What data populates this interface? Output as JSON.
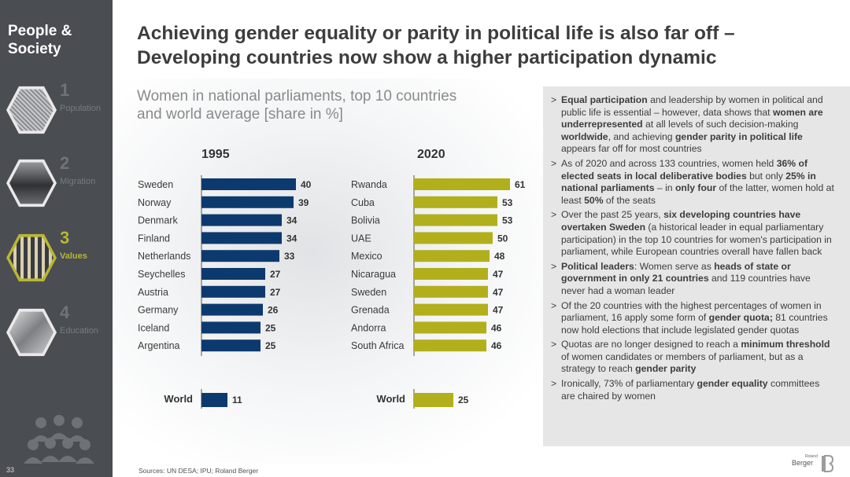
{
  "sidebar": {
    "section_title_line1": "People &",
    "section_title_line2": "Society",
    "items": [
      {
        "num": "1",
        "label": "Population",
        "active": false
      },
      {
        "num": "2",
        "label": "Migration",
        "active": false
      },
      {
        "num": "3",
        "label": "Values",
        "active": true
      },
      {
        "num": "4",
        "label": "Education",
        "active": false
      }
    ]
  },
  "page_number": "33",
  "title_line1": "Achieving gender equality or parity in political life is also far off –",
  "title_line2": "Developing countries now show a higher participation dynamic",
  "subtitle_line1": "Women in national parliaments, top 10 countries",
  "subtitle_line2": "and world average [share in %]",
  "colors": {
    "series_1995": "#0d3a6e",
    "series_2020": "#b2af1c",
    "sidebar": "#4a4d52",
    "notes_bg": "#e6e6e7"
  },
  "chart_data": [
    {
      "type": "bar",
      "orientation": "horizontal",
      "title": "1995",
      "categories": [
        "Sweden",
        "Norway",
        "Denmark",
        "Finland",
        "Netherlands",
        "Seychelles",
        "Austria",
        "Germany",
        "Iceland",
        "Argentina"
      ],
      "values": [
        40,
        39,
        34,
        34,
        33,
        27,
        27,
        26,
        25,
        25
      ],
      "world_label": "World",
      "world_value": 11,
      "color": "#0d3a6e"
    },
    {
      "type": "bar",
      "orientation": "horizontal",
      "title": "2020",
      "categories": [
        "Rwanda",
        "Cuba",
        "Bolivia",
        "UAE",
        "Mexico",
        "Nicaragua",
        "Sweden",
        "Grenada",
        "Andorra",
        "South Africa"
      ],
      "values": [
        61,
        53,
        53,
        50,
        48,
        47,
        47,
        47,
        46,
        46
      ],
      "world_label": "World",
      "world_value": 25,
      "color": "#b2af1c"
    }
  ],
  "notes": [
    [
      {
        "t": "Equal participation",
        "b": true
      },
      {
        "t": " and leadership by women in political and public life is essential – however, data shows that ",
        "b": false
      },
      {
        "t": "women are underrepresented",
        "b": true
      },
      {
        "t": " at all levels of such decision-making ",
        "b": false
      },
      {
        "t": "worldwide",
        "b": true
      },
      {
        "t": ", and achieving ",
        "b": false
      },
      {
        "t": "gender parity in political life",
        "b": true
      },
      {
        "t": " appears far off for most countries",
        "b": false
      }
    ],
    [
      {
        "t": "As of 2020 and across 133 countries, women held ",
        "b": false
      },
      {
        "t": "36% of elected seats in local deliberative bodies",
        "b": true
      },
      {
        "t": " but only ",
        "b": false
      },
      {
        "t": "25% in national parliaments",
        "b": true
      },
      {
        "t": " – in ",
        "b": false
      },
      {
        "t": "only four",
        "b": true
      },
      {
        "t": " of the latter, women hold at least ",
        "b": false
      },
      {
        "t": "50%",
        "b": true
      },
      {
        "t": " of the seats",
        "b": false
      }
    ],
    [
      {
        "t": "Over the past 25 years, ",
        "b": false
      },
      {
        "t": "six developing countries have overtaken Sweden",
        "b": true
      },
      {
        "t": " (a historical leader in equal parliamentary participation) in the top 10 countries for women's participation in parliament, while European countries overall have fallen back",
        "b": false
      }
    ],
    [
      {
        "t": "Political leaders",
        "b": true
      },
      {
        "t": ": Women serve as ",
        "b": false
      },
      {
        "t": "heads of state or government in only 21 countries",
        "b": true
      },
      {
        "t": " and 119 countries have never had a woman leader",
        "b": false
      }
    ],
    [
      {
        "t": "Of the 20 countries with the highest percentages of women in parliament, 16 apply some form of ",
        "b": false
      },
      {
        "t": "gender quota;",
        "b": true
      },
      {
        "t": " 81 countries now hold elections that include legislated gender quotas",
        "b": false
      }
    ],
    [
      {
        "t": "Quotas are no longer designed to reach a ",
        "b": false
      },
      {
        "t": "minimum threshold",
        "b": true
      },
      {
        "t": " of women candidates or members of parliament, but as a strategy to reach ",
        "b": false
      },
      {
        "t": "gender parity",
        "b": true
      }
    ],
    [
      {
        "t": "Ironically, 73% of parliamentary ",
        "b": false
      },
      {
        "t": "gender equality",
        "b": true
      },
      {
        "t": " committees are chaired by women",
        "b": false
      }
    ]
  ],
  "sources": "Sources: UN DESA; IPU; Roland Berger",
  "logo": {
    "small": "Roland",
    "big": "Berger"
  }
}
